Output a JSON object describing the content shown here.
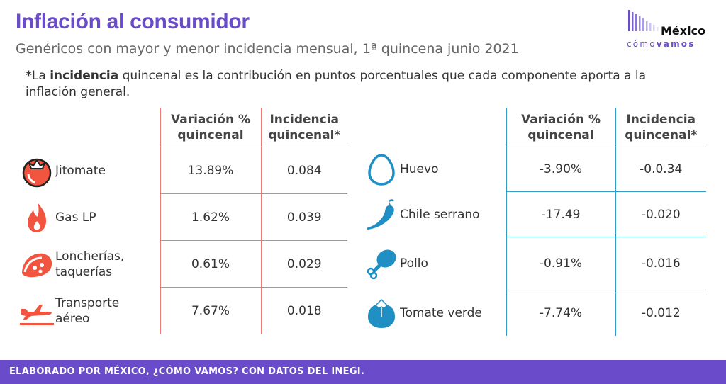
{
  "header": {
    "title": "Inflación al consumidor",
    "subtitle": "Genéricos con mayor y menor incidencia mensual, 1ª quincena junio 2021"
  },
  "logo": {
    "line1": "México",
    "line2a": "cómo",
    "line2b": "vamos"
  },
  "note": {
    "asterisk": "*",
    "pre": "La ",
    "bold": "incidencia",
    "post": " quincenal es la contribución en puntos porcentuales que cada componente aporta a la inflación general."
  },
  "table_headers": {
    "variation_line1": "Variación %",
    "variation_line2": "quincenal",
    "incidence_line1": "Incidencia",
    "incidence_line2": "quincenal*"
  },
  "highest": [
    {
      "icon": "tomato-icon",
      "label_line1": "Jitomate",
      "label_line2": "",
      "variation": "13.89%",
      "incidence": "0.084"
    },
    {
      "icon": "flame-icon",
      "label_line1": "Gas LP",
      "label_line2": "",
      "variation": "1.62%",
      "incidence": "0.039"
    },
    {
      "icon": "taco-icon",
      "label_line1": "Loncherías,",
      "label_line2": "taquerías",
      "variation": "0.61%",
      "incidence": "0.029"
    },
    {
      "icon": "airplane-icon",
      "label_line1": "Transporte",
      "label_line2": "aéreo",
      "variation": "7.67%",
      "incidence": "0.018"
    }
  ],
  "lowest": [
    {
      "icon": "egg-icon",
      "label": "Huevo",
      "variation": "-3.90%",
      "incidence": "-0.0.34"
    },
    {
      "icon": "chili-pepper-icon",
      "label": "Chile serrano",
      "variation": "-17.49",
      "incidence": "-0.020"
    },
    {
      "icon": "chicken-leg-icon",
      "label": "Pollo",
      "variation": "-0.91%",
      "incidence": "-0.016"
    },
    {
      "icon": "green-tomato-icon",
      "label": "Tomate verde",
      "variation": "-7.74%",
      "incidence": "-0.012"
    }
  ],
  "footer": {
    "text": "ELABORADO POR MÉXICO, ¿CÓMO VAMOS? CON DATOS DEL INEGI."
  },
  "colors": {
    "brand_purple": "#6a4bc9",
    "left_accent": "#f07a72",
    "left_icon": "#f2553f",
    "right_accent": "#2e9cc9",
    "right_icon": "#1f8fc4"
  }
}
